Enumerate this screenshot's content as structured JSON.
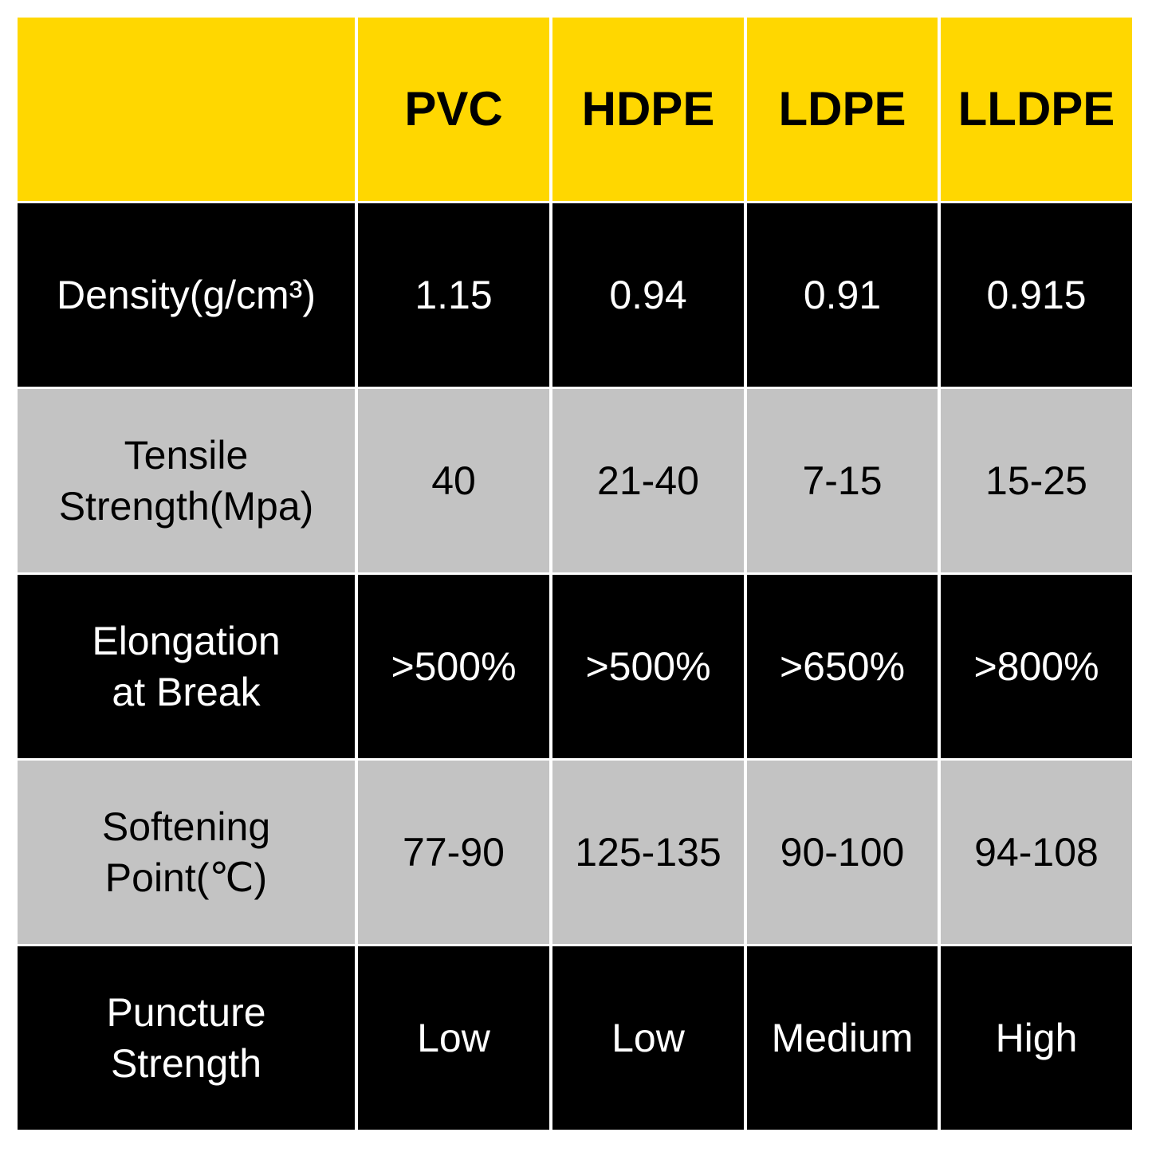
{
  "colors": {
    "header": "#FFD700",
    "dark_row": "#000000",
    "light_row": "#C3C3C3"
  },
  "table": {
    "headers": [
      "",
      "PVC",
      "HDPE",
      "LDPE",
      "LLDPE"
    ],
    "rows": [
      {
        "label": "Density(g/cm³)",
        "values": [
          "1.15",
          "0.94",
          "0.91",
          "0.915"
        ]
      },
      {
        "label": "Tensile\nStrength(Mpa)",
        "values": [
          "40",
          "21-40",
          "7-15",
          "15-25"
        ]
      },
      {
        "label": "Elongation\nat Break",
        "values": [
          ">500%",
          ">500%",
          ">650%",
          ">800%"
        ]
      },
      {
        "label": "Softening\nPoint(℃)",
        "values": [
          "77-90",
          "125-135",
          "90-100",
          "94-108"
        ]
      },
      {
        "label": "Puncture\nStrength",
        "values": [
          "Low",
          "Low",
          "Medium",
          "High"
        ]
      }
    ]
  }
}
